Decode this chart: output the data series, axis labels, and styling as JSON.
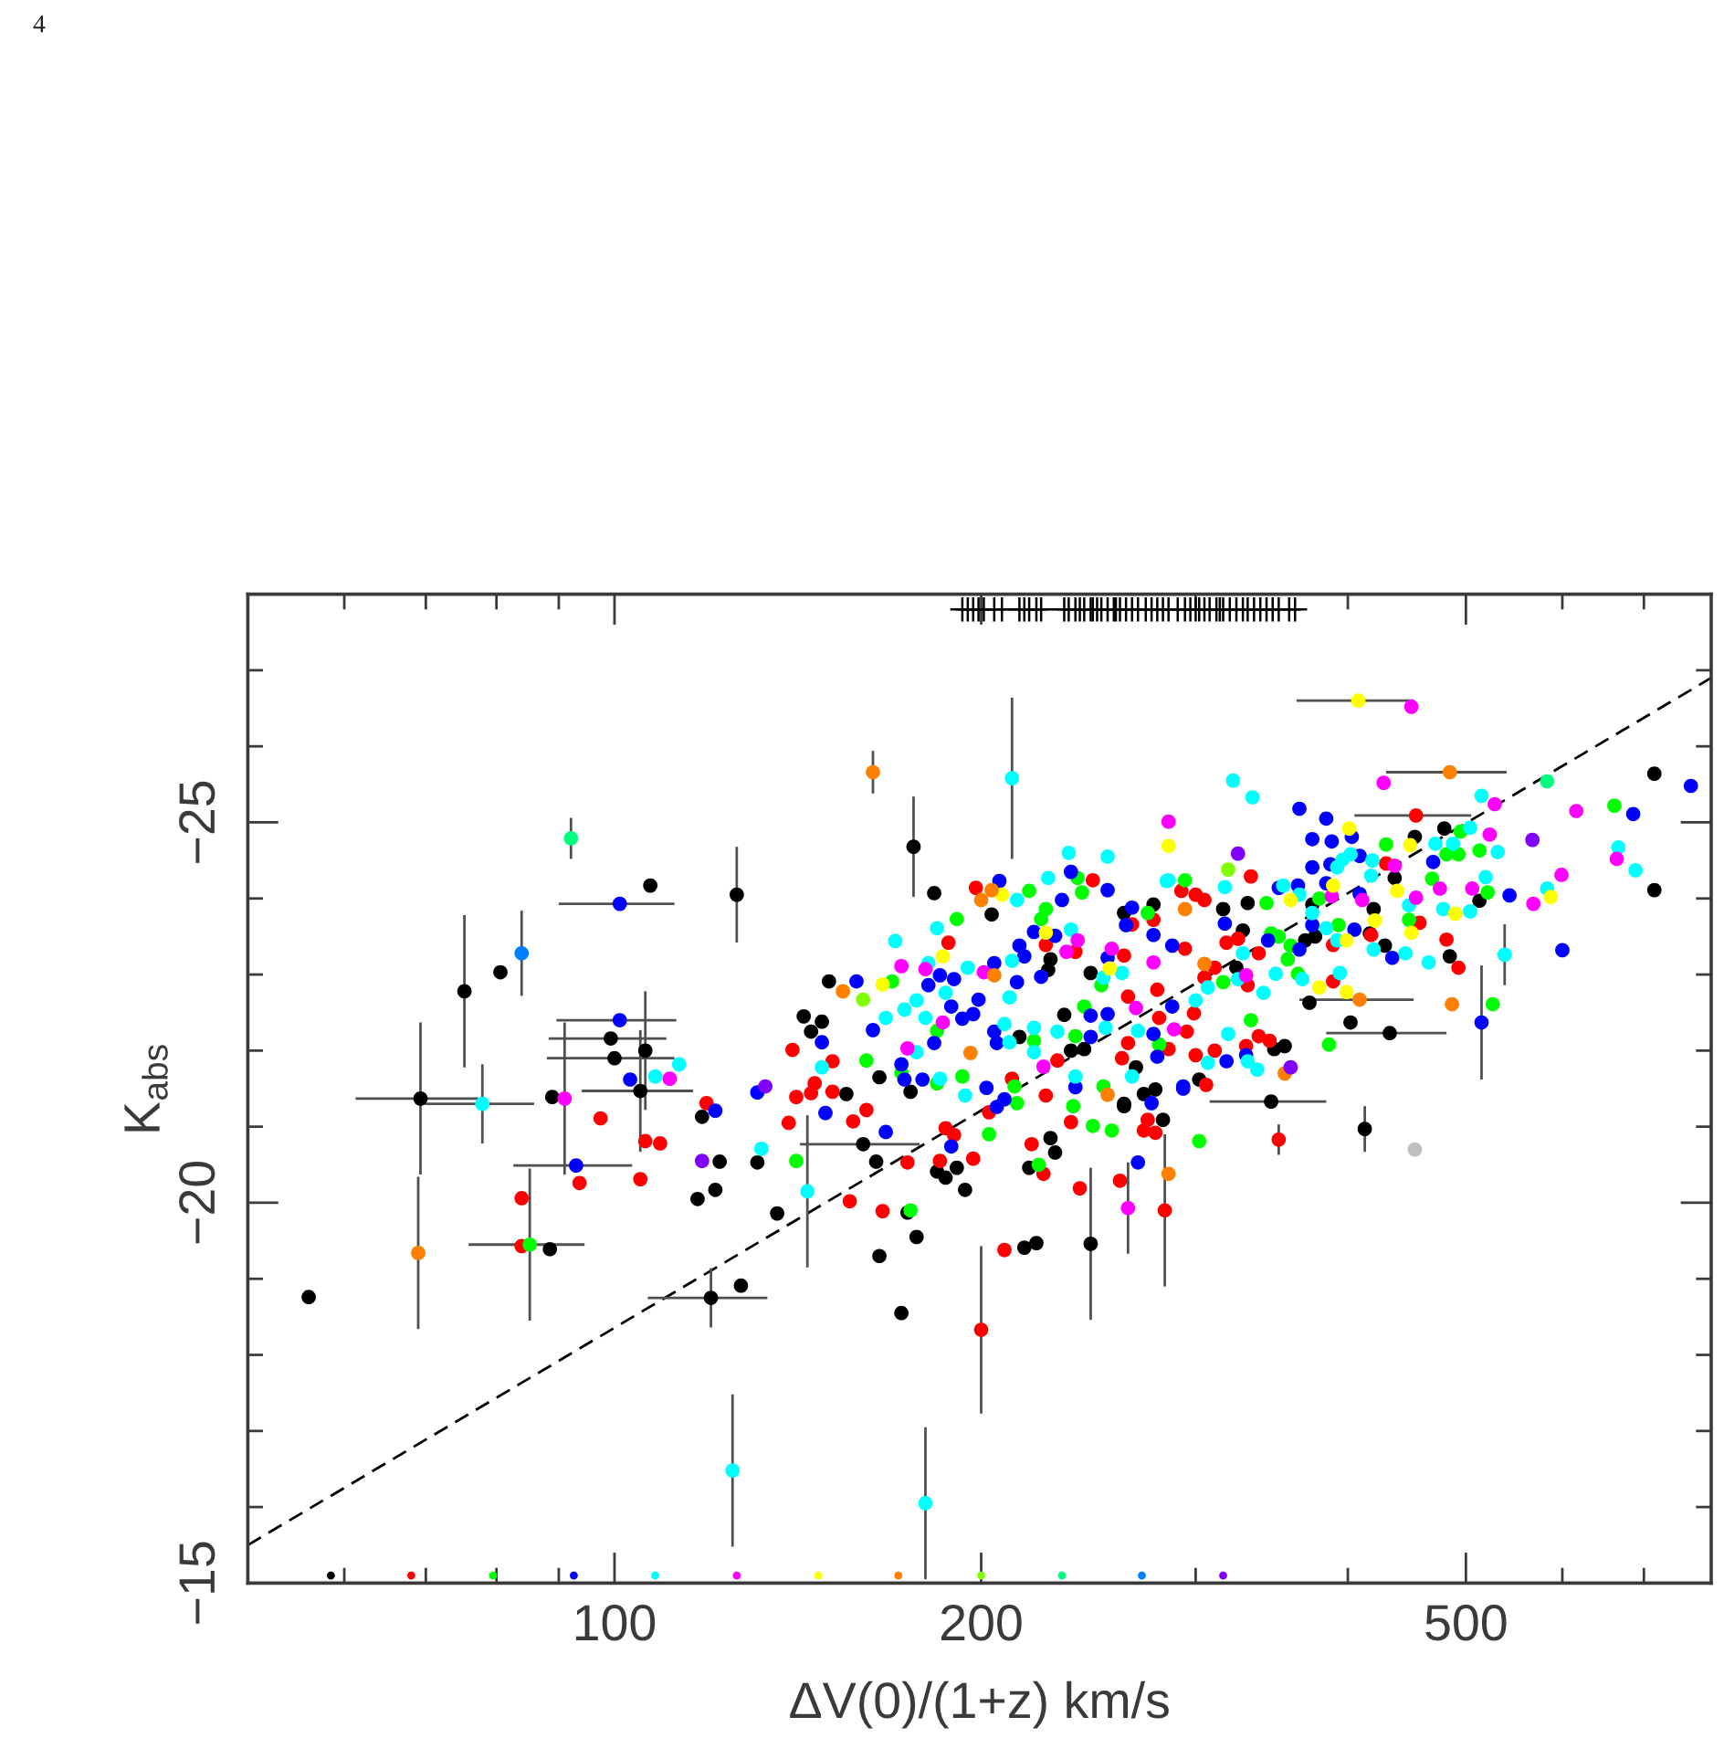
{
  "chart_data": {
    "type": "scatter",
    "xlabel": "ΔV(0)/(1+z) km/s",
    "ylabel": "K$_{abs}$",
    "annotations": [
      "4"
    ],
    "log": "x",
    "marker": "circle",
    "xlim": [
      50,
      795
    ],
    "ylim": [
      -15,
      -28
    ],
    "xticks": [
      {
        "value": 60,
        "label": null
      },
      {
        "value": 70,
        "label": null
      },
      {
        "value": 80,
        "label": null
      },
      {
        "value": 90,
        "label": null
      },
      100,
      200,
      {
        "value": 300,
        "label": null
      },
      {
        "value": 400,
        "label": null
      },
      500,
      {
        "value": 600,
        "label": null
      },
      {
        "value": 700,
        "label": null
      }
    ],
    "yticks": [
      {
        "value": -15,
        "label": "−15"
      },
      {
        "value": -16,
        "label": null
      },
      {
        "value": -17,
        "label": null
      },
      {
        "value": -18,
        "label": null
      },
      {
        "value": -19,
        "label": null
      },
      {
        "value": -20,
        "label": "−20"
      },
      {
        "value": -21,
        "label": null
      },
      {
        "value": -22,
        "label": null
      },
      {
        "value": -23,
        "label": null
      },
      {
        "value": -24,
        "label": null
      },
      {
        "value": -25,
        "label": "−25"
      },
      {
        "value": -26,
        "label": null
      },
      {
        "value": -27,
        "label": null
      }
    ],
    "series": [
      {
        "type": "line",
        "color": "#000000",
        "marker": "none",
        "line_style": "dashed",
        "x": [
          50,
          795
        ],
        "values": [
          -15.5,
          -26.9
        ]
      },
      {
        "color": "#000000",
        "x": [
          88.9,
          80.6,
          107,
          183,
          150,
          143,
          145,
          148,
          155,
          165,
          175,
          204,
          228,
          227,
          246,
          215,
          237,
          243,
          234,
          268,
          262,
          262,
          277,
          118,
          164,
          184,
          187,
          191,
          194,
          174,
          136,
          131,
          122,
          117,
          121,
          127,
          165,
          177,
          172,
          217,
          222,
          219,
          230,
          228,
          262,
          272,
          282,
          56.1,
          88.5,
          714,
          714,
          402,
          372,
          485,
          513,
          480,
          454,
          437,
          331,
          316,
          328,
          324,
          355,
          348,
          302,
          278,
          369,
          376,
          417,
          429,
          420,
          374
        ],
        "values": [
          -21.39,
          -23.03,
          -24.17,
          -24.07,
          -22.91,
          -22.45,
          -22.25,
          -22.38,
          -21.43,
          -21.65,
          -21.46,
          -23.79,
          -23.2,
          -23.06,
          -23.02,
          -22.18,
          -22.0,
          -22.02,
          -22.47,
          -21.78,
          -21.3,
          -23.81,
          -23.92,
          -21.13,
          -20.54,
          -20.41,
          -20.33,
          -20.46,
          -20.17,
          -19.87,
          -19.86,
          -20.53,
          -20.54,
          -20.05,
          -20.17,
          -18.91,
          -19.3,
          -19.55,
          -18.55,
          -19.41,
          -19.47,
          -20.46,
          -20.66,
          -20.85,
          -21.27,
          -21.43,
          -21.09,
          -18.76,
          -19.39,
          -25.64,
          -24.11,
          -22.37,
          -22.63,
          -23.24,
          -23.97,
          -24.92,
          -24.81,
          -24.27,
          -23.94,
          -23.86,
          -23.58,
          -23.09,
          -22.06,
          -22.02,
          -21.62,
          -21.49,
          -23.45,
          -23.5,
          -23.54,
          -23.38,
          -23.86,
          -23.92
        ]
      },
      {
        "color": "#000000",
        "x": [
          69.3,
          75.3,
          126,
          176,
          160,
          120,
          246,
          413,
          346,
          433,
          99.3,
          100,
          106,
          105
        ],
        "values": [
          -21.37,
          -22.78,
          -24.05,
          -24.68,
          -20.77,
          -18.75,
          -19.46,
          -20.97,
          -21.33,
          -22.23,
          -22.16,
          -21.9,
          -22.0,
          -21.47
        ],
        "errors": [
          1.0,
          1.0,
          0.63,
          0.66,
          null,
          0.39,
          1.0,
          0.3,
          null,
          null,
          null,
          null,
          0.78,
          0.8
        ],
        "xerrors": [
          8,
          null,
          null,
          null,
          18,
          13.5,
          null,
          null,
          38,
          49,
          11,
          12,
          null,
          11
        ]
      },
      {
        "color": "#ff0000",
        "x": [
          83.9,
          83.9,
          93.6,
          97.4,
          105,
          106,
          109,
          119,
          140,
          151,
          146,
          145,
          151,
          141,
          139,
          157,
          161,
          174,
          185,
          197,
          187,
          190,
          166,
          156,
          209,
          241,
          225,
          220,
          203,
          237,
          260,
          272,
          278,
          274,
          226,
          212,
          231,
          264,
          264,
          261,
          188,
          198,
          247,
          226,
          239,
          262,
          266,
          277,
          493,
          482,
          458,
          430,
          333,
          418,
          389,
          345,
          338,
          330,
          311,
          306,
          300,
          285,
          295,
          299,
          280,
          279,
          331,
          311,
          305,
          294,
          292,
          305,
          300,
          325,
          318,
          338,
          389
        ],
        "values": [
          -20.06,
          -19.43,
          -20.26,
          -21.11,
          -20.31,
          -20.81,
          -20.78,
          -21.31,
          -22.01,
          -21.86,
          -21.57,
          -21.44,
          -21.46,
          -21.39,
          -21.05,
          -21.07,
          -21.22,
          -20.53,
          -20.55,
          -20.58,
          -20.98,
          -20.89,
          -19.89,
          -20.02,
          -19.38,
          -20.19,
          -20.38,
          -20.77,
          -21.19,
          -21.06,
          -20.29,
          -20.95,
          -20.92,
          -21.09,
          -21.41,
          -21.63,
          -21.87,
          -22.71,
          -22.1,
          -21.9,
          -23.42,
          -24.14,
          -24.24,
          -23.39,
          -23.3,
          -23.25,
          -23.66,
          -23.72,
          -23.09,
          -23.46,
          -23.68,
          -24.46,
          -24.29,
          -23.52,
          -22.91,
          -22.13,
          -22.19,
          -22.06,
          -22.0,
          -21.55,
          -21.94,
          -22.02,
          -22.25,
          -22.49,
          -22.43,
          -22.8,
          -22.86,
          -23.09,
          -22.96,
          -23.34,
          -24.1,
          -23.98,
          -24.05,
          -23.47,
          -23.42,
          -23.28,
          -23.39
        ]
      },
      {
        "color": "#ff0000",
        "x": [
          200,
          351,
          283,
          455
        ],
        "values": [
          -18.33,
          -20.83,
          -19.9,
          -25.09
        ],
        "errors": [
          1.1,
          0.2,
          1.0,
          null
        ],
        "xerrors": [
          null,
          null,
          null,
          50
        ]
      },
      {
        "color": "#00ff00",
        "x": [
          161,
          184,
          172,
          184,
          193,
          169,
          191,
          219,
          240,
          242,
          224,
          226,
          251,
          221,
          239,
          243,
          252,
          213,
          214,
          280,
          274,
          141,
          175,
          223,
          203,
          238,
          247,
          256,
          302,
          662,
          526,
          386,
          521,
          513,
          495,
          482,
          493,
          469,
          430,
          449,
          294,
          379,
          333,
          316,
          346,
          343,
          351,
          359,
          357,
          364,
          393
        ],
        "values": [
          -21.87,
          -22.26,
          -21.71,
          -21.57,
          -21.66,
          -22.91,
          -23.73,
          -24.1,
          -24.27,
          -24.08,
          -23.73,
          -23.86,
          -22.86,
          -22.13,
          -22.19,
          -22.58,
          -21.53,
          -21.53,
          -21.31,
          -22.08,
          -23.81,
          -20.55,
          -19.9,
          -20.5,
          -20.9,
          -21.27,
          -21.01,
          -20.95,
          -20.81,
          -25.22,
          -22.61,
          -22.08,
          -24.08,
          -24.63,
          -24.88,
          -24.58,
          -24.58,
          -24.26,
          -24.71,
          -23.72,
          -24.24,
          -24.0,
          -22.4,
          -22.9,
          -23.54,
          -23.94,
          -23.5,
          -23.38,
          -23.2,
          -23.01,
          -23.65
        ]
      },
      {
        "color": "#00ff00",
        "x": [
          85.2
        ],
        "values": [
          -19.45
        ],
        "errors": [
          1.0
        ],
        "xerrors": [
          9.3
        ]
      },
      {
        "color": "#0000ff",
        "x": [
          103,
          121,
          131,
          149,
          167,
          189,
          158,
          148,
          163,
          183,
          172,
          173,
          179,
          181,
          185,
          190,
          189,
          193,
          197,
          199,
          207,
          233,
          237,
          254,
          221,
          230,
          215,
          217,
          205,
          224,
          254,
          263,
          266,
          277,
          214,
          205,
          206,
          246,
          246,
          254,
          277,
          279,
          276,
          239,
          202,
          209,
          206,
          269,
          293,
          765,
          686,
          543,
          600,
          435,
          470,
          403,
          365,
          384,
          374,
          388,
          374,
          387,
          409,
          351,
          364,
          384,
          405,
          409,
          330,
          318,
          293,
          287,
          287,
          317,
          344,
          365,
          374
        ],
        "values": [
          -21.62,
          -21.21,
          -21.45,
          -21.18,
          -20.93,
          -20.74,
          -22.91,
          -22.11,
          -22.27,
          -22.1,
          -21.82,
          -21.62,
          -21.62,
          -22.86,
          -22.99,
          -22.94,
          -22.58,
          -22.42,
          -22.48,
          -22.67,
          -24.23,
          -23.98,
          -24.35,
          -24.11,
          -23.56,
          -23.51,
          -23.38,
          -23.24,
          -23.15,
          -22.97,
          -23.22,
          -23.65,
          -23.88,
          -23.52,
          -22.9,
          -22.25,
          -22.1,
          -22.18,
          -22.46,
          -22.48,
          -22.22,
          -21.92,
          -21.31,
          -21.52,
          -21.51,
          -21.36,
          -21.26,
          -20.53,
          -21.5,
          -25.48,
          -25.11,
          -24.04,
          -23.32,
          -23.22,
          -24.48,
          -24.81,
          -25.18,
          -25.05,
          -24.78,
          -24.75,
          -24.41,
          -24.45,
          -24.56,
          -24.14,
          -24.17,
          -24.2,
          -23.59,
          -24.06,
          -21.94,
          -21.86,
          -21.53,
          -22.58,
          -23.38,
          -23.67,
          -23.45,
          -23.33,
          -23.65
        ]
      },
      {
        "color": "#0000ff",
        "x": [
          101,
          93,
          515,
          101
        ],
        "values": [
          -23.93,
          -20.49,
          -22.37,
          -22.4
        ],
        "errors": [
          null,
          null,
          0.75,
          null
        ],
        "xerrors": [
          11,
          10.4,
          null,
          11.4
        ]
      },
      {
        "color": "#00ffff",
        "x": [
          108,
          113,
          236,
          254,
          170,
          148,
          167,
          173,
          177,
          180,
          177,
          185,
          194,
          187,
          184,
          181,
          195,
          214,
          227,
          237,
          212,
          252,
          261,
          284,
          211,
          209,
          211,
          221,
          221,
          231,
          253,
          269,
          266,
          239,
          132,
          322,
          334,
          515,
          667,
          689,
          531,
          583,
          466,
          446,
          479,
          504,
          519,
          504,
          488,
          472,
          396,
          402,
          392,
          419,
          285,
          317,
          354,
          374,
          384,
          418,
          420,
          449,
          394,
          337,
          331,
          319,
          307,
          341,
          325,
          307,
          300,
          328,
          365,
          349,
          367,
          392
        ],
        "values": [
          -21.66,
          -21.82,
          -24.6,
          -24.55,
          -23.44,
          -21.78,
          -22.43,
          -22.54,
          -22.66,
          -22.43,
          -21.98,
          -21.63,
          -21.41,
          -22.76,
          -23.61,
          -23.15,
          -23.09,
          -23.98,
          -24.27,
          -23.59,
          -23.18,
          -22.96,
          -23.02,
          -24.23,
          -22.7,
          -22.35,
          -22.11,
          -22.3,
          -21.98,
          -22.25,
          -22.3,
          -22.26,
          -21.66,
          -21.66,
          -20.71,
          -25.55,
          -25.33,
          -25.35,
          -24.67,
          -24.37,
          -24.61,
          -24.13,
          -23.16,
          -23.28,
          -23.86,
          -23.83,
          -24.28,
          -24.93,
          -24.72,
          -24.72,
          -24.51,
          -24.58,
          -24.41,
          -24.5,
          -24.24,
          -24.15,
          -24.17,
          -23.81,
          -23.61,
          -24.3,
          -23.33,
          -23.91,
          -23.02,
          -21.75,
          -21.86,
          -22.22,
          -21.84,
          -22.76,
          -22.94,
          -22.83,
          -22.66,
          -23.28,
          -24.05,
          -23.01,
          -22.94,
          -23.45
        ]
      },
      {
        "color": "#00ffff",
        "x": [
          77.9,
          212,
          144,
          125,
          180,
          538
        ],
        "values": [
          -21.3,
          -25.58,
          -20.15,
          -16.48,
          -16.05,
          -23.26
        ],
        "errors": [
          0.52,
          1.06,
          1.0,
          1.0,
          1.0,
          0.4
        ],
        "xerrors": [
          8,
          null,
          null,
          null,
          null,
          null
        ]
      },
      {
        "color": "#ff00ff",
        "x": [
          111,
          172,
          186,
          174,
          180,
          240,
          235,
          201,
          256,
          268,
          225,
          285,
          277,
          451,
          428,
          528,
          616,
          665,
          599,
          568,
          506,
          476,
          455,
          523,
          437,
          388,
          411,
          330,
          288
        ],
        "values": [
          -21.63,
          -23.11,
          -22.37,
          -22.03,
          -23.07,
          -23.45,
          -23.3,
          -23.03,
          -23.34,
          -22.56,
          -21.79,
          -25.01,
          -23.16,
          -26.52,
          -25.52,
          -25.24,
          -25.15,
          -24.52,
          -24.31,
          -23.93,
          -24.13,
          -24.13,
          -24.01,
          -24.84,
          -24.43,
          -24.03,
          -23.98,
          -22.99,
          -22.28
        ]
      },
      {
        "color": "#ff00ff",
        "x": [
          91,
          264
        ],
        "values": [
          -21.37,
          -19.93
        ],
        "errors": [
          1.0,
          0.6
        ]
      },
      {
        "color": "#ffff00",
        "x": [
          166,
          186,
          208,
          226,
          255,
          285,
          587,
          451,
          490,
          450,
          401,
          439,
          359,
          421,
          379,
          399,
          389,
          399
        ],
        "values": [
          -22.87,
          -23.24,
          -24.05,
          -23.55,
          -23.08,
          -24.69,
          -24.02,
          -23.55,
          -23.8,
          -24.7,
          -24.92,
          -24.1,
          -23.98,
          -23.71,
          -22.83,
          -22.77,
          -24.17,
          -23.45
        ]
      },
      {
        "color": "#ffff00",
        "x": [
          408
        ],
        "values": [
          -26.6
        ],
        "xerrors": [
          45
        ]
      },
      {
        "color": "#ff8000",
        "x": [
          154,
          196,
          200,
          204,
          205,
          254,
          285,
          487,
          355,
          294,
          305
        ],
        "values": [
          -22.78,
          -21.97,
          -23.98,
          -24.11,
          -22.99,
          -21.42,
          -20.38,
          -22.61,
          -21.7,
          -23.86,
          -23.14
        ]
      },
      {
        "color": "#ff8000",
        "x": [
          69,
          163,
          485,
          409
        ],
        "values": [
          -19.34,
          -25.66,
          -25.66,
          -22.67
        ],
        "errors": [
          1.0,
          0.28,
          null,
          null
        ],
        "xerrors": [
          null,
          null,
          55,
          44
        ]
      },
      {
        "color": "#80ff00",
        "x": [
          160,
          319
        ],
        "values": [
          -22.67,
          -24.38
        ]
      },
      {
        "color": "#00ff80",
        "x": [
          583
        ],
        "values": [
          -25.54
        ]
      },
      {
        "color": "#00ff80",
        "x": [
          92.1
        ],
        "values": [
          -24.79
        ],
        "errors": [
          0.27
        ]
      },
      {
        "color": "#0080ff",
        "x": [
          83.9
        ],
        "values": [
          -23.28
        ],
        "errors": [
          0.56
        ]
      },
      {
        "color": "#8000ff",
        "x": [
          133,
          118,
          325,
          567,
          359
        ],
        "values": [
          -21.53,
          -20.55,
          -24.59,
          -24.77,
          -21.78
        ]
      },
      {
        "color": "#bfbfbf",
        "x": [
          454
        ],
        "values": [
          -20.7
        ]
      },
      {
        "colors": [
          "#000000",
          "#ff0000",
          "#00ff00",
          "#0000ff",
          "#00ffff",
          "#ff00ff",
          "#ffff00",
          "#ff8000",
          "#80ff00",
          "#00ff80",
          "#0080ff",
          "#8000ff"
        ],
        "x": [
          58.5,
          68.1,
          79.5,
          92.6,
          108,
          126,
          147,
          171,
          200,
          233,
          271,
          316
        ],
        "values": [
          -15.1,
          -15.1,
          -15.1,
          -15.1,
          -15.1,
          -15.1,
          -15.1,
          -15.1,
          -15.1,
          -15.1,
          -15.1,
          -15.1
        ]
      },
      {
        "color": "#000000",
        "marker": "cross",
        "x": [
          193,
          195,
          197,
          199,
          201,
          205,
          208,
          215,
          217,
          219,
          222,
          224,
          234,
          236,
          239,
          241,
          243,
          246,
          247,
          249,
          251,
          254,
          257,
          258,
          260,
          263,
          266,
          269,
          273,
          276,
          279,
          282,
          285,
          290,
          294,
          297,
          300,
          302,
          305,
          308,
          312,
          314,
          316,
          320,
          324,
          328,
          331,
          335,
          339,
          343,
          347,
          351,
          358,
          362
        ],
        "values": [
          -27.8,
          -27.8,
          -27.8,
          -27.8,
          -27.8,
          -27.8,
          -27.8,
          -27.8,
          -27.8,
          -27.8,
          -27.8,
          -27.8,
          -27.8,
          -27.8,
          -27.8,
          -27.8,
          -27.8,
          -27.8,
          -27.8,
          -27.8,
          -27.8,
          -27.8,
          -27.8,
          -27.8,
          -27.8,
          -27.8,
          -27.8,
          -27.8,
          -27.8,
          -27.8,
          -27.8,
          -27.8,
          -27.8,
          -27.8,
          -27.8,
          -27.8,
          -27.8,
          -27.8,
          -27.8,
          -27.8,
          -27.8,
          -27.8,
          -27.8,
          -27.8,
          -27.8,
          -27.8,
          -27.8,
          -27.8,
          -27.8,
          -27.8,
          -27.8,
          -27.8,
          -27.8,
          -27.8
        ]
      }
    ]
  }
}
